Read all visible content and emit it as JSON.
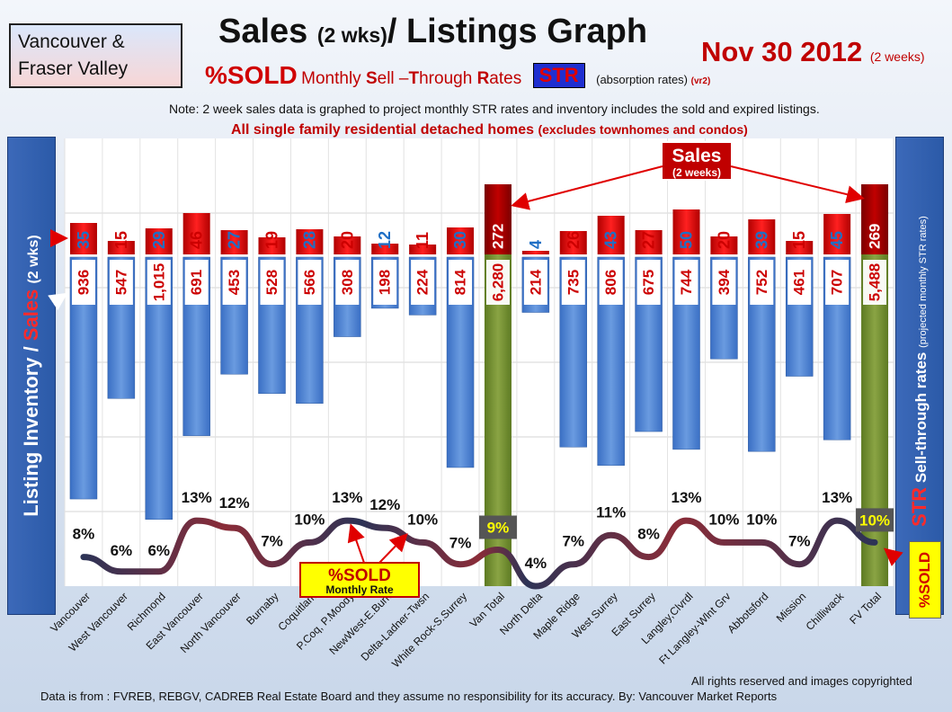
{
  "header": {
    "region": "Vancouver & Fraser Valley",
    "title_main": "Sales",
    "title_paren": "(2 wks)",
    "title_rest": "/ Listings Graph",
    "date": "Nov 30 2012",
    "date_note": "(2 weeks)",
    "sold_label": "%SOLD",
    "str_desc_pre": "Monthly",
    "str_desc_s": "S",
    "str_desc_ell": "ell –",
    "str_desc_t": "T",
    "str_desc_hrough": "hrough",
    "str_desc_r": "R",
    "str_desc_ates": "ates",
    "str_badge": "STR",
    "absorption": "(absorption rates)",
    "version": "(vr2)",
    "note": "Note: 2 week sales data is graphed to project monthly STR rates and inventory includes the sold and expired listings.",
    "scope": "All single family residential detached homes",
    "scope_note": "(excludes townhomes and condos)"
  },
  "axes": {
    "left_inventory": "Listing Inventory /",
    "left_sales": "Sales",
    "left_period": "(2 wks)",
    "right_str": "STR",
    "right_label": "Sell-through rates",
    "right_note": "(projected monthly STR rates)",
    "right_sold": "%SOLD"
  },
  "annotations": {
    "sales_callout": "Sales",
    "sales_callout_sub": "(2 weeks)",
    "sold_callout": "%SOLD",
    "sold_callout_sub": "Monthly Rate"
  },
  "footer": {
    "copyright": "All rights reserved and  images copyrighted",
    "source": "Data is  from : FVREB, REBGV, CADREB Real Estate Board and they assume no responsibility  for its accuracy. By: Vancouver Market Reports"
  },
  "colors": {
    "inventory_bar": "#4a7fd0",
    "total_bar": "#6e8a2e",
    "sales_bar": "#e00000",
    "sales_total_bar": "#b00000",
    "str_line": "#6b2b3a",
    "label_red": "#cc0000",
    "label_blue": "#1f6fc5"
  },
  "chart_data": {
    "type": "bar",
    "categories": [
      "Vancouver",
      "West Vancouver",
      "Richmond",
      "East Vancouver",
      "North Vancouver",
      "Burnaby",
      "Coquitlam",
      "P.Coq, P.Moody",
      "NewWest-E.Burn",
      "Delta-Ladner-Twsn",
      "White Rock-S.Surrey",
      "Van Total",
      "North Delta",
      "Maple Ridge",
      "West Surrey",
      "East Surrey",
      "Langley,Clvrdl",
      "Ft Langley-Wlnt Grv",
      "Abbotsford",
      "Mission",
      "Chilliwack",
      "FV Total"
    ],
    "series": [
      {
        "name": "Listing Inventory",
        "values": [
          936,
          547,
          1015,
          691,
          453,
          528,
          566,
          308,
          198,
          224,
          814,
          6280,
          214,
          735,
          806,
          675,
          744,
          394,
          752,
          461,
          707,
          5488
        ],
        "labels": [
          "936",
          "547",
          "1,015",
          "691",
          "453",
          "528",
          "566",
          "308",
          "198",
          "224",
          "814",
          "6,280",
          "214",
          "735",
          "806",
          "675",
          "744",
          "394",
          "752",
          "461",
          "707",
          "5,488"
        ]
      },
      {
        "name": "Sales",
        "values": [
          35,
          15,
          29,
          46,
          27,
          19,
          28,
          20,
          12,
          11,
          30,
          272,
          4,
          26,
          43,
          27,
          50,
          20,
          39,
          15,
          45,
          269
        ]
      },
      {
        "name": "%SOLD",
        "values": [
          8,
          6,
          6,
          13,
          12,
          7,
          10,
          13,
          12,
          10,
          7,
          9,
          4,
          7,
          11,
          8,
          13,
          10,
          10,
          7,
          13,
          10
        ],
        "labels": [
          "8%",
          "6%",
          "6%",
          "13%",
          "12%",
          "7%",
          "10%",
          "13%",
          "12%",
          "10%",
          "7%",
          "9%",
          "4%",
          "7%",
          "11%",
          "8%",
          "13%",
          "10%",
          "10%",
          "7%",
          "13%",
          "10%"
        ]
      }
    ],
    "totals": [
      "Van Total",
      "FV Total"
    ],
    "grid": true
  }
}
